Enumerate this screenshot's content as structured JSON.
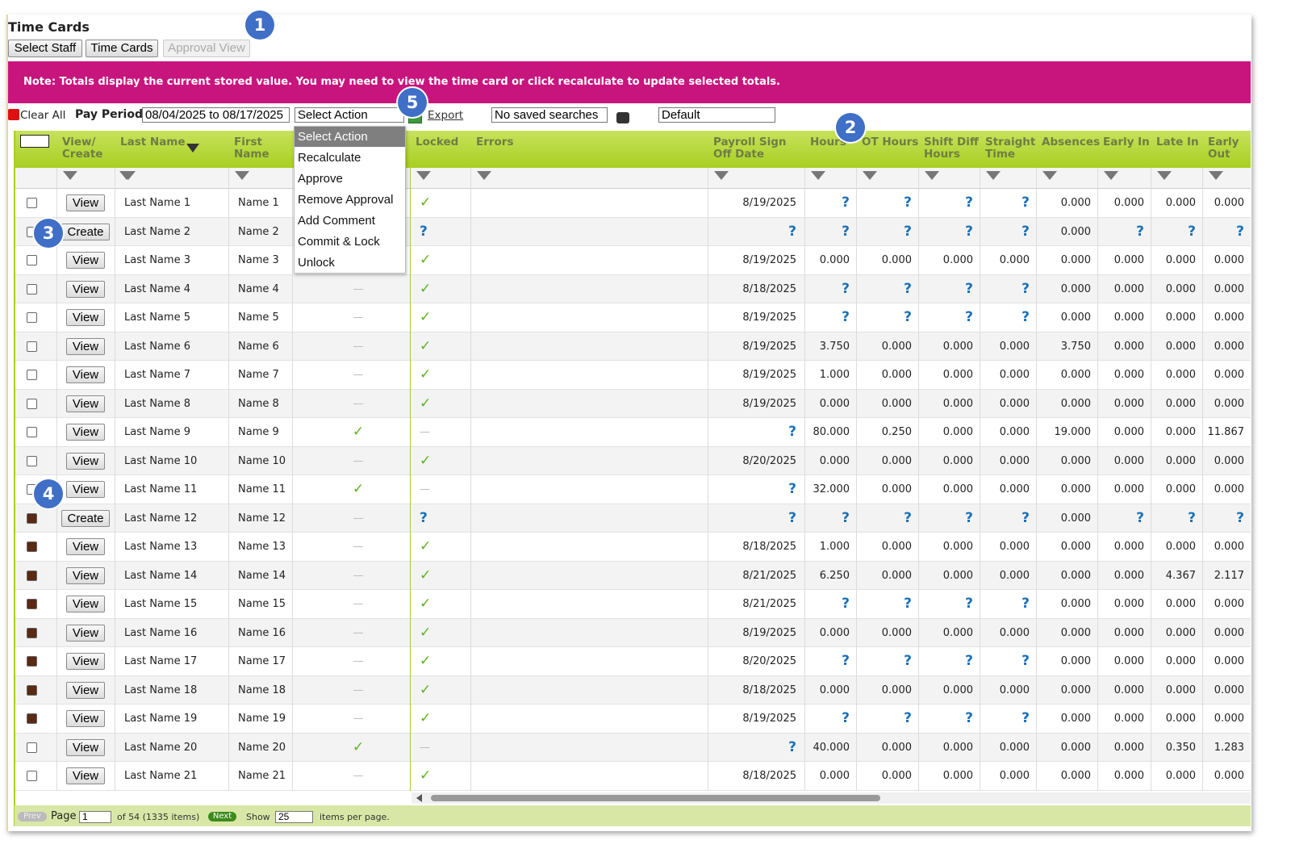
{
  "header": {
    "title": "Time Cards",
    "buttons": [
      "Select Staff",
      "Time Cards",
      "Approval View"
    ]
  },
  "callouts": [
    "1",
    "2",
    "3",
    "4",
    "5"
  ],
  "note": "Note: Totals display the current stored value. You may need to view the time card or click recalculate to update selected totals.",
  "toolbar": {
    "clear_all": "Clear All",
    "pay_period_label": "Pay Period",
    "pay_period": "08/04/2025 to 08/17/2025",
    "action": "Select Action",
    "export": "Export",
    "saved_searches": "No saved searches",
    "view": "Default"
  },
  "dropdown": [
    "Select Action",
    "Recalculate",
    "Approve",
    "Remove Approval",
    "Add Comment",
    "Commit & Lock",
    "Unlock"
  ],
  "table": {
    "columns": [
      "View/ Create",
      "Last Name",
      "First Name",
      "Locked",
      "Errors",
      "Payroll Sign Off Date",
      "Hours",
      "OT Hours",
      "Shift Diff Hours",
      "Straight Time",
      "Absences",
      "Early In",
      "Late In",
      "Early Out"
    ],
    "rows": [
      [
        false,
        "View",
        "Last Name 1",
        "Name 1",
        null,
        "✓",
        "8/19/2025",
        "?",
        "?",
        "?",
        "?",
        "0.000",
        "0.000",
        "0.000",
        "0.000"
      ],
      [
        false,
        "Create",
        "Last Name 2",
        "Name 2",
        null,
        "?",
        "?",
        "?",
        "?",
        "?",
        "?",
        "0.000",
        "?",
        "?",
        "?"
      ],
      [
        false,
        "View",
        "Last Name 3",
        "Name 3",
        null,
        "✓",
        "8/19/2025",
        "0.000",
        "0.000",
        "0.000",
        "0.000",
        "0.000",
        "0.000",
        "0.000",
        "0.000"
      ],
      [
        false,
        "View",
        "Last Name 4",
        "Name 4",
        "—",
        "✓",
        "8/18/2025",
        "?",
        "?",
        "?",
        "?",
        "0.000",
        "0.000",
        "0.000",
        "0.000"
      ],
      [
        false,
        "View",
        "Last Name 5",
        "Name 5",
        "—",
        "✓",
        "8/19/2025",
        "?",
        "?",
        "?",
        "?",
        "0.000",
        "0.000",
        "0.000",
        "0.000"
      ],
      [
        false,
        "View",
        "Last Name 6",
        "Name 6",
        "—",
        "✓",
        "8/19/2025",
        "3.750",
        "0.000",
        "0.000",
        "0.000",
        "3.750",
        "0.000",
        "0.000",
        "0.000"
      ],
      [
        false,
        "View",
        "Last Name 7",
        "Name 7",
        "—",
        "✓",
        "8/19/2025",
        "1.000",
        "0.000",
        "0.000",
        "0.000",
        "0.000",
        "0.000",
        "0.000",
        "0.000"
      ],
      [
        false,
        "View",
        "Last Name 8",
        "Name 8",
        "—",
        "✓",
        "8/19/2025",
        "0.000",
        "0.000",
        "0.000",
        "0.000",
        "0.000",
        "0.000",
        "0.000",
        "0.000"
      ],
      [
        false,
        "View",
        "Last Name 9",
        "Name 9",
        "✓",
        "—",
        "?",
        "80.000",
        "0.250",
        "0.000",
        "0.000",
        "19.000",
        "0.000",
        "0.000",
        "11.867"
      ],
      [
        false,
        "View",
        "Last Name 10",
        "Name 10",
        "—",
        "✓",
        "8/20/2025",
        "0.000",
        "0.000",
        "0.000",
        "0.000",
        "0.000",
        "0.000",
        "0.000",
        "0.000"
      ],
      [
        false,
        "View",
        "Last Name 11",
        "Name 11",
        "✓",
        "—",
        "?",
        "32.000",
        "0.000",
        "0.000",
        "0.000",
        "0.000",
        "0.000",
        "0.000",
        "0.000"
      ],
      [
        true,
        "Create",
        "Last Name 12",
        "Name 12",
        "—",
        "?",
        "?",
        "?",
        "?",
        "?",
        "?",
        "0.000",
        "?",
        "?",
        "?"
      ],
      [
        true,
        "View",
        "Last Name 13",
        "Name 13",
        "—",
        "✓",
        "8/18/2025",
        "1.000",
        "0.000",
        "0.000",
        "0.000",
        "0.000",
        "0.000",
        "0.000",
        "0.000"
      ],
      [
        true,
        "View",
        "Last Name 14",
        "Name 14",
        "—",
        "✓",
        "8/21/2025",
        "6.250",
        "0.000",
        "0.000",
        "0.000",
        "0.000",
        "0.000",
        "4.367",
        "2.117"
      ],
      [
        true,
        "View",
        "Last Name 15",
        "Name 15",
        "—",
        "✓",
        "8/21/2025",
        "?",
        "?",
        "?",
        "?",
        "0.000",
        "0.000",
        "0.000",
        "0.000"
      ],
      [
        true,
        "View",
        "Last Name 16",
        "Name 16",
        "—",
        "✓",
        "8/19/2025",
        "0.000",
        "0.000",
        "0.000",
        "0.000",
        "0.000",
        "0.000",
        "0.000",
        "0.000"
      ],
      [
        true,
        "View",
        "Last Name 17",
        "Name 17",
        "—",
        "✓",
        "8/20/2025",
        "?",
        "?",
        "?",
        "?",
        "0.000",
        "0.000",
        "0.000",
        "0.000"
      ],
      [
        true,
        "View",
        "Last Name 18",
        "Name 18",
        "—",
        "✓",
        "8/18/2025",
        "0.000",
        "0.000",
        "0.000",
        "0.000",
        "0.000",
        "0.000",
        "0.000",
        "0.000"
      ],
      [
        true,
        "View",
        "Last Name 19",
        "Name 19",
        "—",
        "✓",
        "8/19/2025",
        "?",
        "?",
        "?",
        "?",
        "0.000",
        "0.000",
        "0.000",
        "0.000"
      ],
      [
        false,
        "View",
        "Last Name 20",
        "Name 20",
        "✓",
        "—",
        "?",
        "40.000",
        "0.000",
        "0.000",
        "0.000",
        "0.000",
        "0.000",
        "0.350",
        "1.283"
      ],
      [
        false,
        "View",
        "Last Name 21",
        "Name 21",
        "—",
        "✓",
        "8/18/2025",
        "0.000",
        "0.000",
        "0.000",
        "0.000",
        "0.000",
        "0.000",
        "0.000",
        "0.000"
      ]
    ]
  },
  "footer": {
    "prev": "Prev",
    "page_label": "Page",
    "page": "1",
    "of": "of 54 (1335 items)",
    "next": "Next",
    "show": "Show",
    "per_page": "25",
    "items": "items per page."
  }
}
